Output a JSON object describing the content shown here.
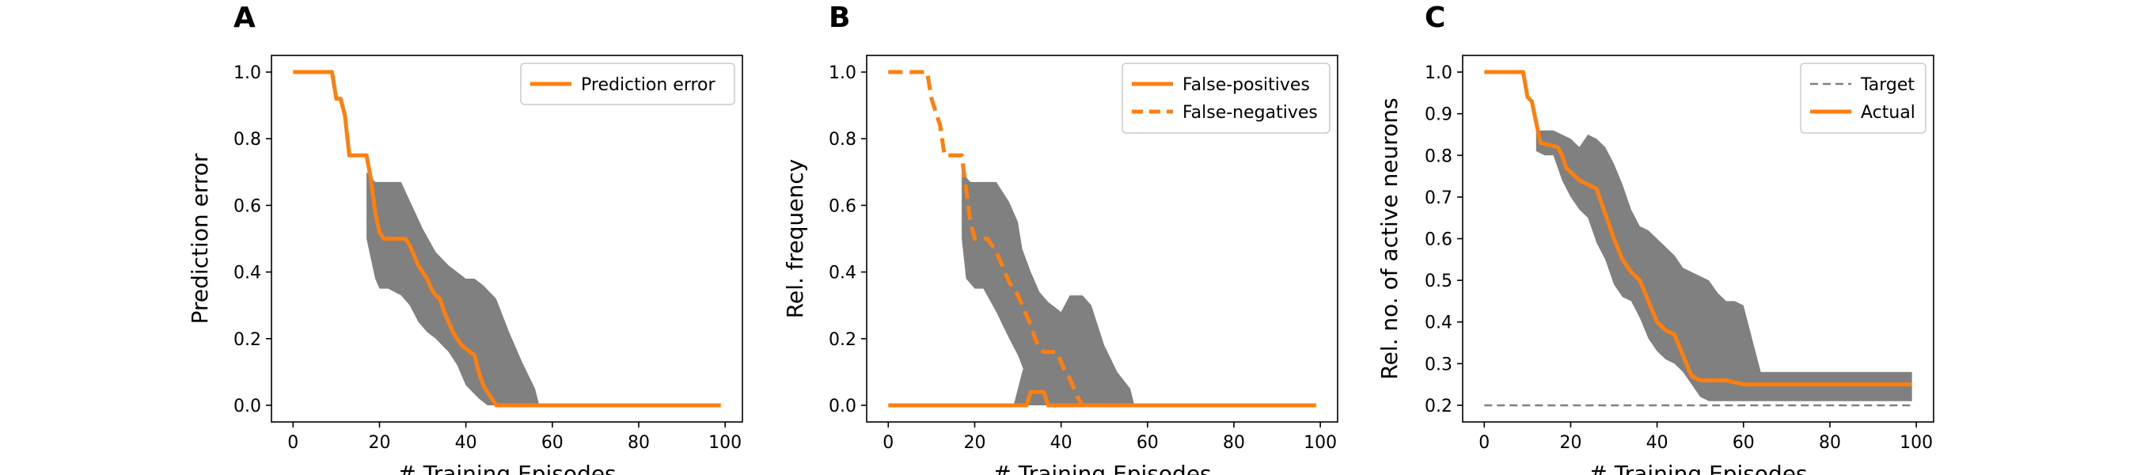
{
  "colors": {
    "actual": "#ff7f0e",
    "band": "#808080",
    "target": "#808080"
  },
  "chart_data": [
    {
      "panel": "A",
      "type": "line",
      "xlabel": "# Training Episodes",
      "ylabel": "Prediction error",
      "xlim": [
        -5,
        104
      ],
      "ylim": [
        -0.05,
        1.05
      ],
      "xticks": [
        0,
        20,
        40,
        60,
        80,
        100
      ],
      "yticks": [
        0.0,
        0.2,
        0.4,
        0.6,
        0.8,
        1.0
      ],
      "legend_position": "top-right",
      "band": {
        "x": [
          17,
          19,
          20,
          25,
          30,
          33,
          36,
          38,
          40,
          42,
          44,
          47,
          50,
          53,
          56,
          57,
          56,
          53,
          50,
          47,
          45,
          43,
          40,
          38,
          36,
          33,
          31,
          29,
          27,
          25,
          22,
          20,
          19,
          17
        ],
        "y": [
          0.7,
          0.67,
          0.67,
          0.67,
          0.53,
          0.46,
          0.42,
          0.4,
          0.38,
          0.38,
          0.36,
          0.32,
          0.22,
          0.13,
          0.05,
          0.0,
          0.0,
          0.0,
          0.0,
          0.0,
          0.0,
          0.02,
          0.06,
          0.12,
          0.16,
          0.2,
          0.22,
          0.25,
          0.3,
          0.33,
          0.35,
          0.35,
          0.38,
          0.5
        ]
      },
      "series": [
        {
          "name": "Prediction error",
          "style": "solid",
          "x": [
            0,
            9,
            10,
            11,
            12,
            13,
            17,
            18,
            19,
            20,
            21,
            22,
            26,
            27,
            28,
            29,
            30,
            31,
            32,
            33,
            34,
            35,
            36,
            37,
            38,
            39,
            40,
            41,
            42,
            43,
            44,
            45,
            46,
            47,
            55,
            99
          ],
          "y": [
            1.0,
            1.0,
            0.92,
            0.92,
            0.87,
            0.75,
            0.75,
            0.68,
            0.58,
            0.52,
            0.5,
            0.5,
            0.5,
            0.48,
            0.45,
            0.42,
            0.4,
            0.38,
            0.35,
            0.33,
            0.32,
            0.28,
            0.25,
            0.22,
            0.2,
            0.18,
            0.17,
            0.16,
            0.15,
            0.1,
            0.06,
            0.04,
            0.02,
            0.0,
            0.0,
            0.0
          ]
        }
      ]
    },
    {
      "panel": "B",
      "type": "line",
      "xlabel": "# Training Episodes",
      "ylabel": "Rel. frequency",
      "xlim": [
        -5,
        104
      ],
      "ylim": [
        -0.05,
        1.05
      ],
      "xticks": [
        0,
        20,
        40,
        60,
        80,
        100
      ],
      "yticks": [
        0.0,
        0.2,
        0.4,
        0.6,
        0.8,
        1.0
      ],
      "legend_position": "top-right",
      "bands": [
        {
          "x": [
            17,
            19,
            20,
            25,
            28,
            30,
            31,
            33,
            35,
            37,
            40,
            42,
            43,
            44,
            43,
            41,
            39,
            37,
            35,
            33,
            30,
            28,
            25,
            22,
            20,
            18,
            17
          ],
          "y": [
            0.7,
            0.67,
            0.67,
            0.67,
            0.61,
            0.55,
            0.47,
            0.4,
            0.34,
            0.31,
            0.28,
            0.25,
            0.15,
            0.05,
            0.0,
            0.0,
            0.0,
            0.0,
            0.0,
            0.05,
            0.15,
            0.2,
            0.28,
            0.35,
            0.35,
            0.38,
            0.5
          ]
        },
        {
          "x": [
            29,
            31,
            33,
            35,
            37,
            40,
            42,
            45,
            47,
            50,
            53,
            56,
            57,
            54,
            50,
            47,
            44,
            42,
            40,
            38,
            35,
            32,
            30
          ],
          "y": [
            0.0,
            0.1,
            0.18,
            0.27,
            0.31,
            0.28,
            0.33,
            0.33,
            0.3,
            0.18,
            0.1,
            0.05,
            0.0,
            0.0,
            0.0,
            0.0,
            0.0,
            0.0,
            0.0,
            0.0,
            0.0,
            0.0,
            0.0
          ]
        }
      ],
      "series": [
        {
          "name": "False-positives",
          "style": "solid",
          "x": [
            0,
            32,
            33,
            34,
            35,
            36,
            37,
            38,
            99
          ],
          "y": [
            0.0,
            0.0,
            0.04,
            0.04,
            0.04,
            0.04,
            0.0,
            0.0,
            0.0
          ]
        },
        {
          "name": "False-negatives",
          "style": "dashed",
          "x": [
            0,
            9,
            10,
            11,
            12,
            13,
            15,
            16,
            17,
            18,
            19,
            20,
            21,
            22,
            23,
            24,
            25,
            26,
            27,
            28,
            29,
            30,
            31,
            32,
            33,
            34,
            35,
            36,
            37,
            38,
            39,
            40,
            41,
            42,
            43,
            44,
            45,
            99
          ],
          "y": [
            1.0,
            1.0,
            0.92,
            0.88,
            0.84,
            0.75,
            0.75,
            0.75,
            0.75,
            0.65,
            0.55,
            0.5,
            0.5,
            0.5,
            0.5,
            0.48,
            0.46,
            0.43,
            0.4,
            0.37,
            0.35,
            0.33,
            0.3,
            0.27,
            0.24,
            0.2,
            0.17,
            0.16,
            0.16,
            0.16,
            0.16,
            0.13,
            0.1,
            0.08,
            0.05,
            0.02,
            0.0,
            0.0
          ]
        }
      ]
    },
    {
      "panel": "C",
      "type": "line",
      "xlabel": "# Training Episodes",
      "ylabel": "Rel. no. of active neurons",
      "xlim": [
        -5,
        104
      ],
      "ylim": [
        0.16,
        1.04
      ],
      "xticks": [
        0,
        20,
        40,
        60,
        80,
        100
      ],
      "yticks": [
        0.2,
        0.3,
        0.4,
        0.5,
        0.6,
        0.7,
        0.8,
        0.9,
        1.0
      ],
      "legend_position": "top-right",
      "band": {
        "x": [
          12,
          14,
          16,
          18,
          20,
          22,
          24,
          26,
          28,
          30,
          32,
          34,
          36,
          38,
          40,
          42,
          44,
          46,
          48,
          50,
          52,
          54,
          56,
          58,
          60,
          62,
          64,
          66,
          70,
          80,
          90,
          99,
          99,
          90,
          80,
          70,
          66,
          64,
          62,
          60,
          58,
          56,
          54,
          52,
          50,
          48,
          46,
          44,
          42,
          40,
          38,
          36,
          34,
          32,
          30,
          28,
          26,
          24,
          22,
          20,
          18,
          16,
          14,
          12
        ],
        "y": [
          0.86,
          0.86,
          0.86,
          0.85,
          0.84,
          0.82,
          0.85,
          0.84,
          0.82,
          0.78,
          0.73,
          0.67,
          0.63,
          0.62,
          0.6,
          0.58,
          0.56,
          0.53,
          0.52,
          0.51,
          0.5,
          0.47,
          0.45,
          0.45,
          0.44,
          0.36,
          0.28,
          0.28,
          0.28,
          0.28,
          0.28,
          0.28,
          0.21,
          0.21,
          0.21,
          0.21,
          0.21,
          0.21,
          0.21,
          0.21,
          0.21,
          0.21,
          0.21,
          0.21,
          0.22,
          0.25,
          0.28,
          0.3,
          0.31,
          0.33,
          0.36,
          0.41,
          0.45,
          0.46,
          0.49,
          0.55,
          0.59,
          0.65,
          0.67,
          0.7,
          0.74,
          0.8,
          0.8,
          0.81
        ]
      },
      "series": [
        {
          "name": "Target",
          "style": "dashed-thin",
          "x": [
            0,
            99
          ],
          "y": [
            0.2,
            0.2
          ]
        },
        {
          "name": "Actual",
          "style": "solid",
          "x": [
            0,
            9,
            10,
            11,
            12,
            13,
            17,
            18,
            19,
            20,
            22,
            24,
            26,
            28,
            30,
            32,
            34,
            36,
            38,
            40,
            42,
            44,
            46,
            48,
            50,
            52,
            54,
            56,
            58,
            60,
            65,
            70,
            80,
            90,
            99
          ],
          "y": [
            1.0,
            1.0,
            0.94,
            0.93,
            0.88,
            0.83,
            0.82,
            0.8,
            0.77,
            0.76,
            0.74,
            0.73,
            0.72,
            0.66,
            0.6,
            0.55,
            0.52,
            0.5,
            0.45,
            0.4,
            0.38,
            0.37,
            0.32,
            0.27,
            0.26,
            0.26,
            0.26,
            0.26,
            0.255,
            0.25,
            0.25,
            0.25,
            0.25,
            0.25,
            0.25
          ]
        }
      ]
    }
  ]
}
